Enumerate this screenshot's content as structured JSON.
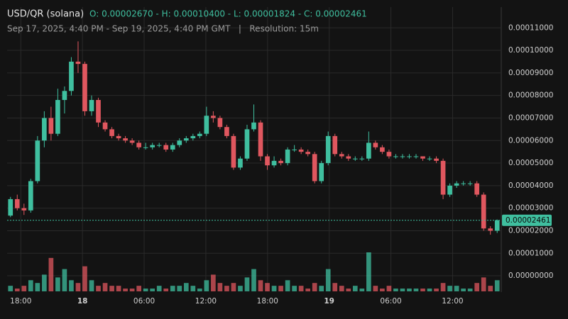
{
  "chart_data": {
    "type": "candlestick",
    "title": "USD/QR (solana)",
    "ohlc_label": "O: 0.00002670 - H: 0.00010400 - L: 0.00001824 - C: 0.00002461",
    "subtitle": "Sep 17, 2025, 4:40 PM - Sep 19, 2025, 4:40 PM GMT   |   Resolution: 15m",
    "up_color": "#3fbf9f",
    "down_color": "#e0575f",
    "xlim": [
      "2025-09-17T16:40",
      "2025-09-19T16:40"
    ],
    "xticks": [
      {
        "value": "2025-09-17T18:00",
        "label": "18:00"
      },
      {
        "value": "2025-09-18T00:00",
        "label": "18"
      },
      {
        "value": "2025-09-18T06:00",
        "label": "06:00"
      },
      {
        "value": "2025-09-18T12:00",
        "label": "12:00"
      },
      {
        "value": "2025-09-18T18:00",
        "label": "18:00"
      },
      {
        "value": "2025-09-19T00:00",
        "label": "19"
      },
      {
        "value": "2025-09-19T06:00",
        "label": "06:00"
      },
      {
        "value": "2025-09-19T12:00",
        "label": "12:00"
      }
    ],
    "ylim": [
      -6.9e-06,
      0.0001192
    ],
    "yticks": [
      {
        "value": 0,
        "label": "0.00000000"
      },
      {
        "value": 1e-05,
        "label": "0.00001000"
      },
      {
        "value": 2e-05,
        "label": "0.00002000"
      },
      {
        "value": 3e-05,
        "label": "0.00003000"
      },
      {
        "value": 4e-05,
        "label": "0.00004000"
      },
      {
        "value": 5e-05,
        "label": "0.00005000"
      },
      {
        "value": 6e-05,
        "label": "0.00006000"
      },
      {
        "value": 7e-05,
        "label": "0.00007000"
      },
      {
        "value": 8e-05,
        "label": "0.00008000"
      },
      {
        "value": 9e-05,
        "label": "0.00009000"
      },
      {
        "value": 0.0001,
        "label": "0.00010000"
      },
      {
        "value": 0.00011,
        "label": "0.00011000"
      }
    ],
    "grid": true,
    "last_price": 2.461e-05,
    "last_price_label": "0.00002461",
    "candles": [
      [
        2.67e-05,
        3.5e-05,
        2.6e-05,
        3.4e-05
      ],
      [
        3.4e-05,
        3.6e-05,
        2.9e-05,
        3e-05
      ],
      [
        3e-05,
        3.2e-05,
        2.7e-05,
        2.9e-05
      ],
      [
        2.9e-05,
        4.3e-05,
        2.8e-05,
        4.2e-05
      ],
      [
        4.2e-05,
        6.2e-05,
        4.1e-05,
        6e-05
      ],
      [
        6e-05,
        7.3e-05,
        5.7e-05,
        7e-05
      ],
      [
        7e-05,
        7.5e-05,
        6e-05,
        6.3e-05
      ],
      [
        6.3e-05,
        8.3e-05,
        6.2e-05,
        7.8e-05
      ],
      [
        7.8e-05,
        8.4e-05,
        7.2e-05,
        8.2e-05
      ],
      [
        8.2e-05,
        9.7e-05,
        8e-05,
        9.5e-05
      ],
      [
        9.5e-05,
        0.000104,
        9e-05,
        9.4e-05
      ],
      [
        9.4e-05,
        9.5e-05,
        7.1e-05,
        7.3e-05
      ],
      [
        7.3e-05,
        8e-05,
        7.1e-05,
        7.8e-05
      ],
      [
        7.8e-05,
        7.9e-05,
        6.6e-05,
        6.8e-05
      ],
      [
        6.8e-05,
        6.9e-05,
        6.4e-05,
        6.5e-05
      ],
      [
        6.5e-05,
        6.6e-05,
        6.1e-05,
        6.2e-05
      ],
      [
        6.2e-05,
        6.3e-05,
        6e-05,
        6.1e-05
      ],
      [
        6.1e-05,
        6.2e-05,
        5.9e-05,
        6e-05
      ],
      [
        6e-05,
        6.1e-05,
        5.8e-05,
        5.9e-05
      ],
      [
        5.9e-05,
        6e-05,
        5.6e-05,
        5.7e-05
      ],
      [
        5.7e-05,
        5.9e-05,
        5.6e-05,
        5.7e-05
      ],
      [
        5.7e-05,
        5.9e-05,
        5.6e-05,
        5.8e-05
      ],
      [
        5.8e-05,
        5.9e-05,
        5.7e-05,
        5.8e-05
      ],
      [
        5.8e-05,
        5.9e-05,
        5.5e-05,
        5.6e-05
      ],
      [
        5.6e-05,
        5.9e-05,
        5.5e-05,
        5.8e-05
      ],
      [
        5.8e-05,
        6.1e-05,
        5.7e-05,
        6e-05
      ],
      [
        6e-05,
        6.2e-05,
        5.9e-05,
        6.1e-05
      ],
      [
        6.1e-05,
        6.3e-05,
        6e-05,
        6.2e-05
      ],
      [
        6.2e-05,
        6.4e-05,
        6.1e-05,
        6.3e-05
      ],
      [
        6.3e-05,
        7.5e-05,
        6.2e-05,
        7.1e-05
      ],
      [
        7.1e-05,
        7.3e-05,
        6.8e-05,
        7e-05
      ],
      [
        7e-05,
        7.1e-05,
        6.5e-05,
        6.6e-05
      ],
      [
        6.6e-05,
        6.7e-05,
        6.1e-05,
        6.2e-05
      ],
      [
        6.2e-05,
        6.3e-05,
        4.7e-05,
        4.8e-05
      ],
      [
        4.8e-05,
        5.3e-05,
        4.7e-05,
        5.2e-05
      ],
      [
        5.2e-05,
        6.7e-05,
        5.1e-05,
        6.5e-05
      ],
      [
        6.5e-05,
        7.6e-05,
        6.4e-05,
        6.8e-05
      ],
      [
        6.8e-05,
        6.9e-05,
        5.1e-05,
        5.3e-05
      ],
      [
        5.3e-05,
        5.4e-05,
        4.7e-05,
        4.9e-05
      ],
      [
        4.9e-05,
        5.3e-05,
        4.8e-05,
        5.1e-05
      ],
      [
        5.1e-05,
        5.2e-05,
        4.9e-05,
        5e-05
      ],
      [
        5e-05,
        5.7e-05,
        4.9e-05,
        5.6e-05
      ],
      [
        5.6e-05,
        5.8e-05,
        5.5e-05,
        5.6e-05
      ],
      [
        5.6e-05,
        5.7e-05,
        5.4e-05,
        5.5e-05
      ],
      [
        5.5e-05,
        5.6e-05,
        5.3e-05,
        5.4e-05
      ],
      [
        5.4e-05,
        5.5e-05,
        4.1e-05,
        4.2e-05
      ],
      [
        4.2e-05,
        5.1e-05,
        4.1e-05,
        5e-05
      ],
      [
        5e-05,
        6.4e-05,
        4.9e-05,
        6.2e-05
      ],
      [
        6.2e-05,
        6.3e-05,
        5.3e-05,
        5.4e-05
      ],
      [
        5.4e-05,
        5.5e-05,
        5.2e-05,
        5.3e-05
      ],
      [
        5.3e-05,
        5.4e-05,
        5.1e-05,
        5.2e-05
      ],
      [
        5.2e-05,
        5.3e-05,
        5.1e-05,
        5.2e-05
      ],
      [
        5.2e-05,
        5.3e-05,
        5.1e-05,
        5.2e-05
      ],
      [
        5.2e-05,
        6.4e-05,
        5.1e-05,
        5.9e-05
      ],
      [
        5.9e-05,
        6e-05,
        5.6e-05,
        5.7e-05
      ],
      [
        5.7e-05,
        5.8e-05,
        5.4e-05,
        5.5e-05
      ],
      [
        5.5e-05,
        5.6e-05,
        5.2e-05,
        5.3e-05
      ],
      [
        5.3e-05,
        5.4e-05,
        5.2e-05,
        5.3e-05
      ],
      [
        5.3e-05,
        5.4e-05,
        5.2e-05,
        5.3e-05
      ],
      [
        5.3e-05,
        5.4e-05,
        5.2e-05,
        5.3e-05
      ],
      [
        5.3e-05,
        5.4e-05,
        5.2e-05,
        5.3e-05
      ],
      [
        5.3e-05,
        5.3e-05,
        5.1e-05,
        5.2e-05
      ],
      [
        5.2e-05,
        5.3e-05,
        5.1e-05,
        5.2e-05
      ],
      [
        5.2e-05,
        5.3e-05,
        5e-05,
        5.1e-05
      ],
      [
        5.1e-05,
        5.2e-05,
        3.4e-05,
        3.6e-05
      ],
      [
        3.6e-05,
        4.1e-05,
        3.5e-05,
        4e-05
      ],
      [
        4e-05,
        4.2e-05,
        3.9e-05,
        4.1e-05
      ],
      [
        4.1e-05,
        4.2e-05,
        4e-05,
        4.1e-05
      ],
      [
        4.1e-05,
        4.2e-05,
        4e-05,
        4.1e-05
      ],
      [
        4.1e-05,
        4.2e-05,
        3.5e-05,
        3.6e-05
      ],
      [
        3.6e-05,
        3.7e-05,
        2e-05,
        2.1e-05
      ],
      [
        2.1e-05,
        2.2e-05,
        1.824e-05,
        2e-05
      ],
      [
        2e-05,
        2.5e-05,
        1.9e-05,
        2.461e-05
      ]
    ],
    "volume": [
      2,
      1,
      2,
      4,
      3,
      6,
      12,
      5,
      8,
      4,
      3,
      9,
      4,
      2,
      3,
      2,
      2,
      1,
      1,
      2,
      1,
      1,
      2,
      1,
      2,
      2,
      3,
      2,
      1,
      4,
      6,
      3,
      2,
      3,
      2,
      5,
      8,
      4,
      3,
      2,
      2,
      4,
      2,
      2,
      1,
      3,
      2,
      8,
      3,
      2,
      1,
      2,
      1,
      14,
      2,
      1,
      2,
      1,
      1,
      1,
      1,
      1,
      1,
      1,
      3,
      2,
      2,
      1,
      1,
      3,
      5,
      2,
      4
    ]
  }
}
